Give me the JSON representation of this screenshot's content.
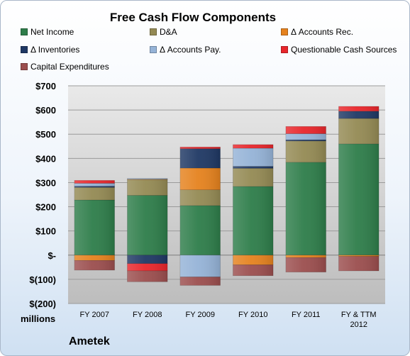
{
  "chart_data": {
    "type": "bar",
    "stacked": true,
    "title": "Free Cash Flow Components",
    "units_label": "millions",
    "company": "Ametek",
    "categories": [
      "FY 2007",
      "FY 2008",
      "FY 2009",
      "FY 2010",
      "FY 2011",
      "FY & TTM 2012"
    ],
    "ylim": [
      -200,
      700
    ],
    "yticks": [
      {
        "value": 700,
        "label": "$700"
      },
      {
        "value": 600,
        "label": "$600"
      },
      {
        "value": 500,
        "label": "$500"
      },
      {
        "value": 400,
        "label": "$400"
      },
      {
        "value": 300,
        "label": "$300"
      },
      {
        "value": 200,
        "label": "$200"
      },
      {
        "value": 100,
        "label": "$100"
      },
      {
        "value": 0,
        "label": "$-"
      },
      {
        "value": -100,
        "label": "$(100)"
      },
      {
        "value": -200,
        "label": "$(200)"
      }
    ],
    "grid": true,
    "legend_position": "top",
    "series": [
      {
        "name": "Net Income",
        "color": "#2e7d4a",
        "values": [
          228,
          247,
          205,
          284,
          384,
          460
        ]
      },
      {
        "name": "D&A",
        "color": "#948a54",
        "values": [
          52,
          65,
          65,
          75,
          88,
          105
        ]
      },
      {
        "name": "Δ Accounts Rec.",
        "color": "#e5821e",
        "values": [
          -22,
          2,
          90,
          -40,
          -10,
          -5
        ]
      },
      {
        "name": "Δ Inventories",
        "color": "#1f3864",
        "values": [
          5,
          -35,
          80,
          8,
          5,
          30
        ]
      },
      {
        "name": "Δ Accounts Pay.",
        "color": "#95b3d7",
        "values": [
          12,
          3,
          -90,
          75,
          25,
          0
        ]
      },
      {
        "name": "Questionable Cash Sources",
        "color": "#e8262b",
        "values": [
          12,
          -30,
          7,
          15,
          30,
          20
        ]
      },
      {
        "name": "Capital Expenditures",
        "color": "#9b4e4e",
        "values": [
          -40,
          -45,
          -35,
          -45,
          -60,
          -60
        ]
      }
    ]
  }
}
